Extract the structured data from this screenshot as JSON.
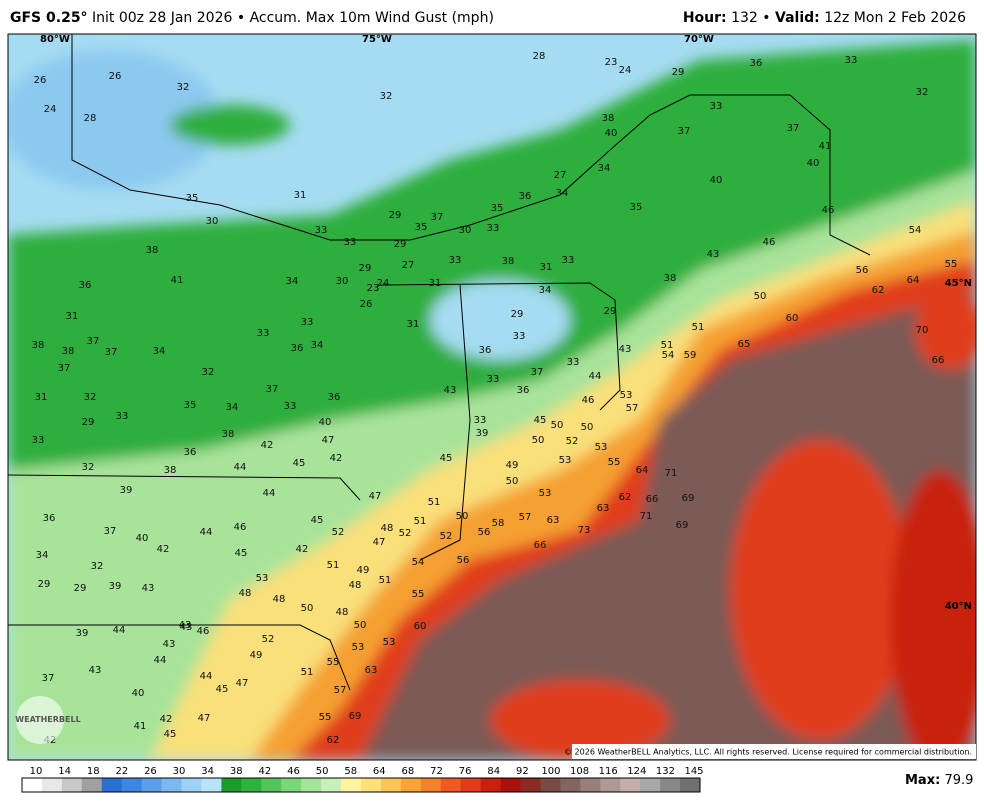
{
  "header": {
    "model": "GFS 0.25°",
    "init": "Init 00z 28 Jan 2026",
    "sep": "•",
    "product": "Accum. Max 10m Wind Gust (mph)",
    "hour_label": "Hour:",
    "hour": "132",
    "valid_label": "Valid:",
    "valid": "12z Mon 2 Feb 2026"
  },
  "graticule": {
    "lon": [
      "80°W",
      "75°W",
      "70°W"
    ],
    "lat": [
      "45°N",
      "40°N"
    ]
  },
  "logo": "WEATHERBELL",
  "copyright": "© 2026 WeatherBELL Analytics, LLC. All rights reserved. License required for commercial distribution.",
  "station_values": [
    26,
    26,
    32,
    24,
    28,
    32,
    28,
    23,
    24,
    29,
    36,
    33,
    32,
    38,
    40,
    37,
    33,
    37,
    41,
    40,
    40,
    46,
    54,
    46,
    43,
    27,
    34,
    34,
    35,
    36,
    35,
    37,
    35,
    29,
    31,
    30,
    33,
    33,
    29,
    30,
    33,
    29,
    27,
    33,
    38,
    31,
    33,
    31,
    30,
    34,
    38,
    41,
    36,
    31,
    34,
    29,
    29,
    31,
    33,
    36,
    33,
    44,
    43,
    33,
    36,
    37,
    43,
    38,
    50,
    51,
    51,
    54,
    59,
    65,
    60,
    56,
    62,
    64,
    55,
    70,
    66,
    53,
    57,
    46,
    45,
    50,
    50,
    50,
    52,
    53,
    33,
    39,
    53,
    55,
    64,
    71,
    49,
    50,
    53,
    63,
    62,
    66,
    69,
    71,
    69,
    57,
    63,
    58,
    56,
    73,
    66,
    56,
    52,
    50,
    51,
    51,
    52,
    48,
    47,
    47,
    45,
    40,
    47,
    42,
    45,
    44,
    44,
    45,
    52,
    42,
    51,
    49,
    51,
    48,
    54,
    55,
    48,
    48,
    50,
    48,
    60,
    50,
    53,
    53,
    63,
    51,
    55,
    57,
    55,
    69,
    62,
    53,
    52,
    49,
    47,
    45,
    44,
    46,
    43,
    43,
    44,
    43,
    37,
    40,
    42,
    41,
    45,
    47,
    42,
    38,
    38,
    37,
    37,
    37,
    34,
    32,
    31,
    32,
    29,
    33,
    33,
    32,
    38,
    36,
    39,
    36,
    37,
    40,
    42,
    46,
    44,
    45,
    34,
    32,
    29,
    29,
    39,
    43,
    43,
    39,
    44,
    34,
    38,
    35,
    42,
    33,
    36,
    37,
    33,
    33,
    36,
    34,
    26,
    24,
    23,
    35
  ],
  "colorbar": {
    "ticks": [
      10,
      14,
      18,
      22,
      26,
      30,
      34,
      38,
      42,
      46,
      50,
      58,
      64,
      68,
      72,
      76,
      84,
      92,
      100,
      108,
      116,
      124,
      132,
      145
    ],
    "colors": [
      "#ffffff",
      "#e8e8e8",
      "#c8c8c8",
      "#a0a0a0",
      "#2a6fd6",
      "#3f86e3",
      "#5b9fe8",
      "#7cb8ef",
      "#9fd0f5",
      "#b9e3f8",
      "#1a9b2c",
      "#2fb33c",
      "#52c45a",
      "#7ad67a",
      "#a3e49a",
      "#c8f0b8",
      "#fff2a0",
      "#fde07a",
      "#fbc455",
      "#f8a535",
      "#f4822a",
      "#ee5a20",
      "#e03c1c",
      "#c8200f",
      "#a8120b",
      "#8a2a22",
      "#7a4a44",
      "#846460",
      "#9a7e7a",
      "#b09894",
      "#c4aeaa",
      "#a8a8a8",
      "#888888",
      "#707070"
    ]
  },
  "max_label": "Max:",
  "max_value": "79.9"
}
